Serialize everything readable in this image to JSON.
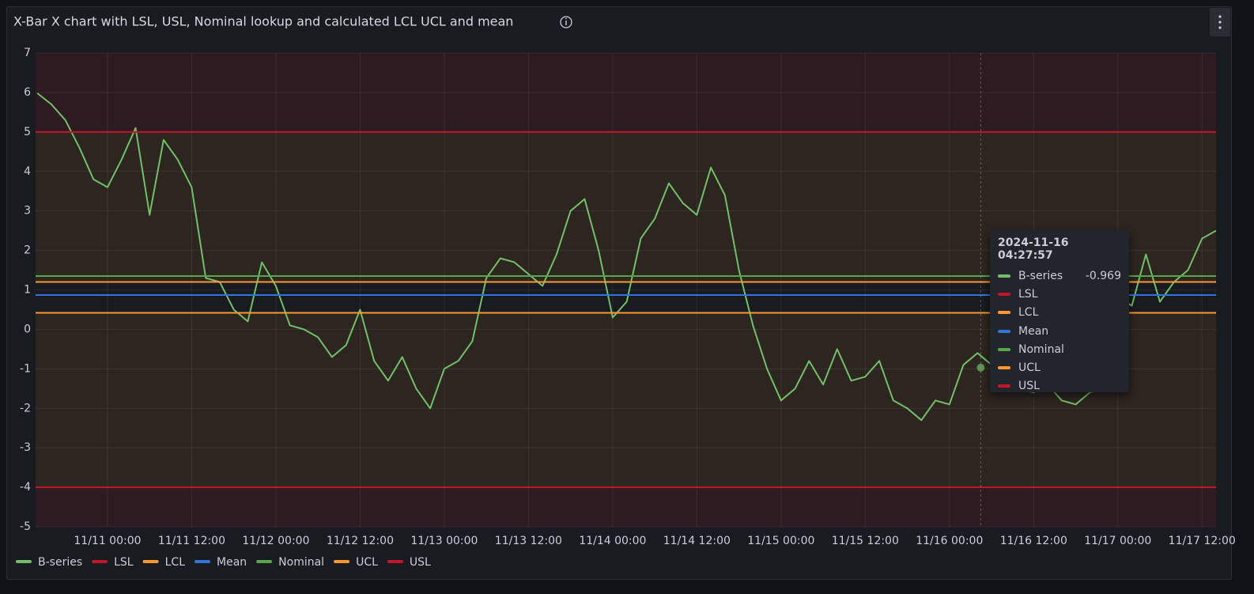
{
  "chart_data": {
    "type": "line",
    "title": "X-Bar X chart with LSL, USL, Nominal lookup and calculated LCL UCL and mean",
    "x": [
      "2024-11-10T14:00",
      "2024-11-10T16:00",
      "2024-11-10T18:00",
      "2024-11-10T20:00",
      "2024-11-10T22:00",
      "2024-11-11T00:00",
      "2024-11-11T02:00",
      "2024-11-11T04:00",
      "2024-11-11T06:00",
      "2024-11-11T08:00",
      "2024-11-11T10:00",
      "2024-11-11T12:00",
      "2024-11-11T14:00",
      "2024-11-11T16:00",
      "2024-11-11T18:00",
      "2024-11-11T20:00",
      "2024-11-11T22:00",
      "2024-11-12T00:00",
      "2024-11-12T02:00",
      "2024-11-12T04:00",
      "2024-11-12T06:00",
      "2024-11-12T08:00",
      "2024-11-12T10:00",
      "2024-11-12T12:00",
      "2024-11-12T14:00",
      "2024-11-12T16:00",
      "2024-11-12T18:00",
      "2024-11-12T20:00",
      "2024-11-12T22:00",
      "2024-11-13T00:00",
      "2024-11-13T02:00",
      "2024-11-13T04:00",
      "2024-11-13T06:00",
      "2024-11-13T08:00",
      "2024-11-13T10:00",
      "2024-11-13T12:00",
      "2024-11-13T14:00",
      "2024-11-13T16:00",
      "2024-11-13T18:00",
      "2024-11-13T20:00",
      "2024-11-13T22:00",
      "2024-11-14T00:00",
      "2024-11-14T02:00",
      "2024-11-14T04:00",
      "2024-11-14T06:00",
      "2024-11-14T08:00",
      "2024-11-14T10:00",
      "2024-11-14T12:00",
      "2024-11-14T14:00",
      "2024-11-14T16:00",
      "2024-11-14T18:00",
      "2024-11-14T20:00",
      "2024-11-14T22:00",
      "2024-11-15T00:00",
      "2024-11-15T02:00",
      "2024-11-15T04:00",
      "2024-11-15T06:00",
      "2024-11-15T08:00",
      "2024-11-15T10:00",
      "2024-11-15T12:00",
      "2024-11-15T14:00",
      "2024-11-15T16:00",
      "2024-11-15T18:00",
      "2024-11-15T20:00",
      "2024-11-15T22:00",
      "2024-11-16T00:00",
      "2024-11-16T02:00",
      "2024-11-16T04:00",
      "2024-11-16T06:00",
      "2024-11-16T08:00",
      "2024-11-16T10:00",
      "2024-11-16T12:00",
      "2024-11-16T14:00",
      "2024-11-16T16:00",
      "2024-11-16T18:00",
      "2024-11-16T20:00",
      "2024-11-16T22:00",
      "2024-11-17T00:00",
      "2024-11-17T02:00",
      "2024-11-17T04:00",
      "2024-11-17T06:00",
      "2024-11-17T08:00",
      "2024-11-17T10:00",
      "2024-11-17T12:00",
      "2024-11-17T14:00"
    ],
    "series": [
      {
        "name": "B-series",
        "color": "#73bf69",
        "values": [
          5.98,
          5.7,
          5.3,
          4.6,
          3.8,
          3.6,
          4.3,
          5.1,
          2.9,
          4.8,
          4.3,
          3.6,
          1.3,
          1.2,
          0.5,
          0.2,
          1.7,
          1.1,
          0.1,
          0.0,
          -0.2,
          -0.7,
          -0.4,
          0.5,
          -0.8,
          -1.3,
          -0.7,
          -1.5,
          -2.0,
          -1.0,
          -0.8,
          -0.3,
          1.3,
          1.8,
          1.7,
          1.4,
          1.1,
          1.9,
          3.0,
          3.3,
          2.0,
          0.3,
          0.7,
          2.3,
          2.8,
          3.7,
          3.2,
          2.9,
          4.1,
          3.4,
          1.5,
          0.1,
          -1.0,
          -1.8,
          -1.5,
          -0.8,
          -1.4,
          -0.5,
          -1.3,
          -1.2,
          -0.8,
          -1.8,
          -2.0,
          -2.3,
          -1.8,
          -1.9,
          -0.9,
          -0.6,
          -0.9,
          -1.2,
          -1.5,
          -1.6,
          -1.4,
          -1.8,
          -1.9,
          -1.6,
          -1.5,
          0.8,
          0.6,
          1.9,
          0.7,
          1.2,
          1.5,
          2.3,
          2.5
        ]
      },
      {
        "name": "LSL",
        "color": "#c4162a",
        "value": -4
      },
      {
        "name": "LCL",
        "color": "#ff9830",
        "value": 0.42
      },
      {
        "name": "Mean",
        "color": "#3274d9",
        "value": 0.87
      },
      {
        "name": "Nominal",
        "color": "#56a64b",
        "value": 1.35
      },
      {
        "name": "UCL",
        "color": "#ff9830",
        "value": 1.2
      },
      {
        "name": "USL",
        "color": "#c4162a",
        "value": 5
      }
    ],
    "xlim": [
      "2024-11-10T13:45",
      "2024-11-17T14:00"
    ],
    "xticks": [
      {
        "value": "2024-11-11T00:00",
        "label": "11/11 00:00"
      },
      {
        "value": "2024-11-11T12:00",
        "label": "11/11 12:00"
      },
      {
        "value": "2024-11-12T00:00",
        "label": "11/12 00:00"
      },
      {
        "value": "2024-11-12T12:00",
        "label": "11/12 12:00"
      },
      {
        "value": "2024-11-13T00:00",
        "label": "11/13 00:00"
      },
      {
        "value": "2024-11-13T12:00",
        "label": "11/13 12:00"
      },
      {
        "value": "2024-11-14T00:00",
        "label": "11/14 00:00"
      },
      {
        "value": "2024-11-14T12:00",
        "label": "11/14 12:00"
      },
      {
        "value": "2024-11-15T00:00",
        "label": "11/15 00:00"
      },
      {
        "value": "2024-11-15T12:00",
        "label": "11/15 12:00"
      },
      {
        "value": "2024-11-16T00:00",
        "label": "11/16 00:00"
      },
      {
        "value": "2024-11-16T12:00",
        "label": "11/16 12:00"
      },
      {
        "value": "2024-11-17T00:00",
        "label": "11/17 00:00"
      },
      {
        "value": "2024-11-17T12:00",
        "label": "11/17 12:00"
      }
    ],
    "ylim": [
      -5,
      7
    ],
    "yticks": [
      -5,
      -4,
      -3,
      -2,
      -1,
      0,
      1,
      2,
      3,
      4,
      5,
      6,
      7
    ],
    "grid": true,
    "legend": "bottom",
    "tooltip": {
      "time": "2024-11-16 04:27:57",
      "value": -0.969
    }
  }
}
